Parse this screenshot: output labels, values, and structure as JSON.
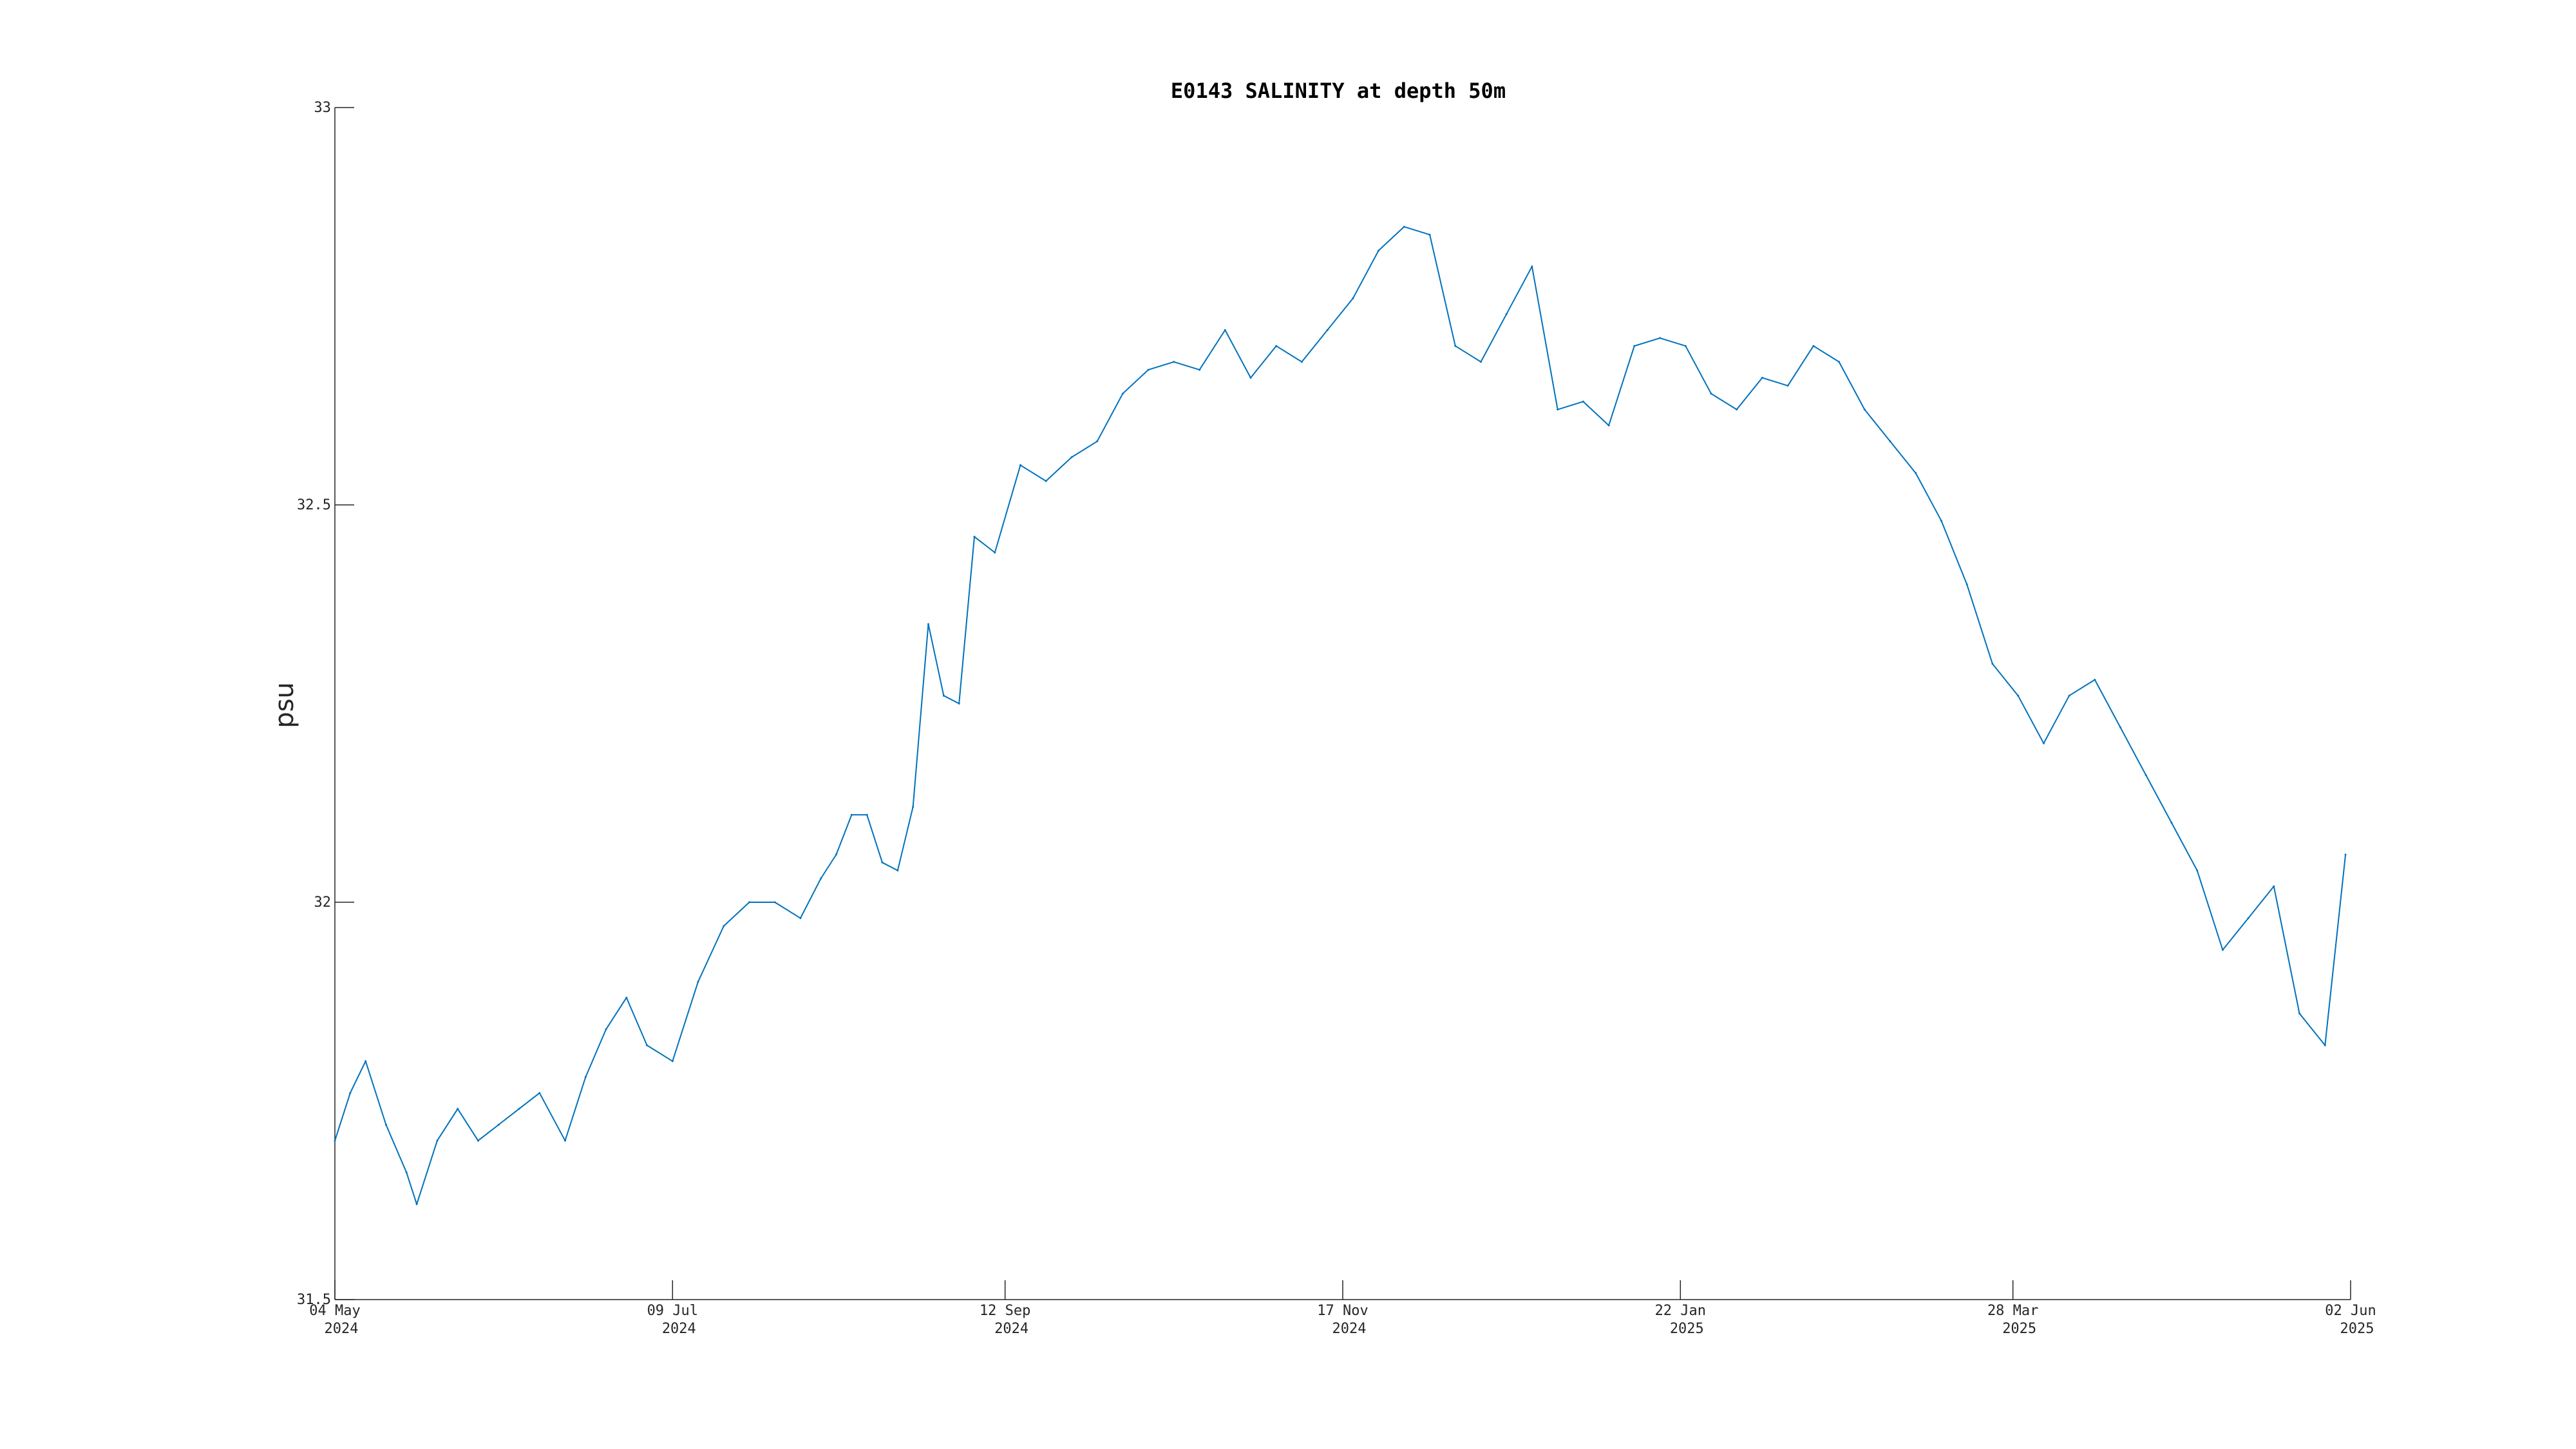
{
  "chart_data": {
    "type": "line",
    "title": "E0143 SALINITY at depth 50m",
    "xlabel": "",
    "ylabel": "psu",
    "xlim": [
      "2024-05-04",
      "2025-06-02"
    ],
    "ylim": [
      31.5,
      33
    ],
    "y_ticks": [
      {
        "value": 31.5,
        "label": "31.5"
      },
      {
        "value": 32,
        "label": "32"
      },
      {
        "value": 32.5,
        "label": "32.5"
      },
      {
        "value": 33,
        "label": "33"
      }
    ],
    "x_ticks": [
      {
        "date": "2024-05-04",
        "line1": "04 May",
        "line2": "2024"
      },
      {
        "date": "2024-07-09",
        "line1": "09 Jul",
        "line2": "2024"
      },
      {
        "date": "2024-09-12",
        "line1": "12 Sep",
        "line2": "2024"
      },
      {
        "date": "2024-11-17",
        "line1": "17 Nov",
        "line2": "2024"
      },
      {
        "date": "2025-01-22",
        "line1": "22 Jan",
        "line2": "2025"
      },
      {
        "date": "2025-03-28",
        "line1": "28 Mar",
        "line2": "2025"
      },
      {
        "date": "2025-06-02",
        "line1": "02 Jun",
        "line2": "2025"
      }
    ],
    "grid": false,
    "legend": "none",
    "series": [
      {
        "color": "#0072BD",
        "x": [
          "2024-05-04",
          "2024-05-07",
          "2024-05-10",
          "2024-05-14",
          "2024-05-18",
          "2024-05-20",
          "2024-05-24",
          "2024-05-28",
          "2024-06-01",
          "2024-06-05",
          "2024-06-09",
          "2024-06-13",
          "2024-06-18",
          "2024-06-22",
          "2024-06-26",
          "2024-06-30",
          "2024-07-04",
          "2024-07-09",
          "2024-07-14",
          "2024-07-19",
          "2024-07-24",
          "2024-07-29",
          "2024-08-03",
          "2024-08-07",
          "2024-08-10",
          "2024-08-13",
          "2024-08-16",
          "2024-08-19",
          "2024-08-22",
          "2024-08-25",
          "2024-08-28",
          "2024-08-31",
          "2024-09-03",
          "2024-09-06",
          "2024-09-10",
          "2024-09-15",
          "2024-09-20",
          "2024-09-25",
          "2024-09-30",
          "2024-10-05",
          "2024-10-10",
          "2024-10-15",
          "2024-10-20",
          "2024-10-25",
          "2024-10-30",
          "2024-11-04",
          "2024-11-09",
          "2024-11-14",
          "2024-11-19",
          "2024-11-24",
          "2024-11-29",
          "2024-12-04",
          "2024-12-09",
          "2024-12-14",
          "2024-12-19",
          "2024-12-24",
          "2024-12-29",
          "2025-01-03",
          "2025-01-08",
          "2025-01-13",
          "2025-01-18",
          "2025-01-23",
          "2025-01-28",
          "2025-02-02",
          "2025-02-07",
          "2025-02-12",
          "2025-02-17",
          "2025-02-22",
          "2025-02-27",
          "2025-03-04",
          "2025-03-09",
          "2025-03-14",
          "2025-03-19",
          "2025-03-24",
          "2025-03-29",
          "2025-04-03",
          "2025-04-08",
          "2025-04-13",
          "2025-04-18",
          "2025-04-23",
          "2025-04-28",
          "2025-05-03",
          "2025-05-08",
          "2025-05-13",
          "2025-05-18",
          "2025-05-23",
          "2025-05-28",
          "2025-06-01"
        ],
        "y": [
          31.7,
          31.76,
          31.8,
          31.72,
          31.66,
          31.62,
          31.7,
          31.74,
          31.7,
          31.72,
          31.74,
          31.76,
          31.7,
          31.78,
          31.84,
          31.88,
          31.82,
          31.8,
          31.9,
          31.97,
          32.0,
          32.0,
          31.98,
          32.03,
          32.06,
          32.11,
          32.11,
          32.05,
          32.04,
          32.12,
          32.35,
          32.26,
          32.25,
          32.46,
          32.44,
          32.55,
          32.53,
          32.56,
          32.58,
          32.64,
          32.67,
          32.68,
          32.67,
          32.72,
          32.66,
          32.7,
          32.68,
          32.72,
          32.76,
          32.82,
          32.85,
          32.84,
          32.7,
          32.68,
          32.74,
          32.8,
          32.62,
          32.63,
          32.6,
          32.7,
          32.71,
          32.7,
          32.64,
          32.62,
          32.66,
          32.65,
          32.7,
          32.68,
          32.62,
          32.58,
          32.54,
          32.48,
          32.4,
          32.3,
          32.26,
          32.2,
          32.26,
          32.28,
          32.22,
          32.16,
          32.1,
          32.04,
          31.94,
          31.98,
          32.02,
          31.86,
          31.82,
          32.06
        ]
      }
    ]
  }
}
